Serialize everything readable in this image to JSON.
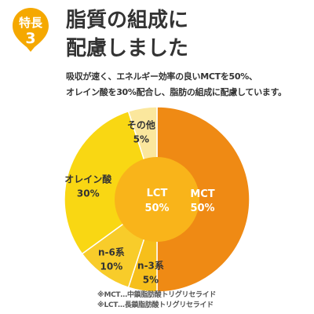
{
  "badge": {
    "label": "特長",
    "number": "3",
    "color": "#f5a800"
  },
  "headline": {
    "line1": "脂質の組成に",
    "line2": "配慮しました"
  },
  "description": {
    "line1": "吸収が速く、エネルギー効率の良いMCTを50%、",
    "line2": "オレイン酸を30%配合し、脂肪の組成に配慮しています。"
  },
  "chart_data": {
    "type": "pie",
    "title": "",
    "slices": [
      {
        "label": "MCT",
        "value": 50,
        "value_label": "50%",
        "color": "#ef8a14",
        "text_color": "#ffffff"
      },
      {
        "label": "n-3系",
        "value": 5,
        "value_label": "5%",
        "color": "#f6bf1b",
        "text_color": "#333333"
      },
      {
        "label": "n-6系",
        "value": 10,
        "value_label": "10%",
        "color": "#f8cc2a",
        "text_color": "#333333"
      },
      {
        "label": "オレイン酸",
        "value": 30,
        "value_label": "30%",
        "color": "#f9d713",
        "text_color": "#333333"
      },
      {
        "label": "その他",
        "value": 5,
        "value_label": "5%",
        "color": "#fbe79d",
        "text_color": "#333333"
      }
    ],
    "inner": {
      "label": "LCT",
      "value_label": "50%",
      "color": "#f9b41a",
      "text_color": "#ffffff"
    },
    "direction": "clockwise from top"
  },
  "notes": {
    "line1": "※MCT…中鎖脂肪酸トリグリセライド",
    "line2": "※LCT…長鎖脂肪酸トリグリセライド"
  }
}
